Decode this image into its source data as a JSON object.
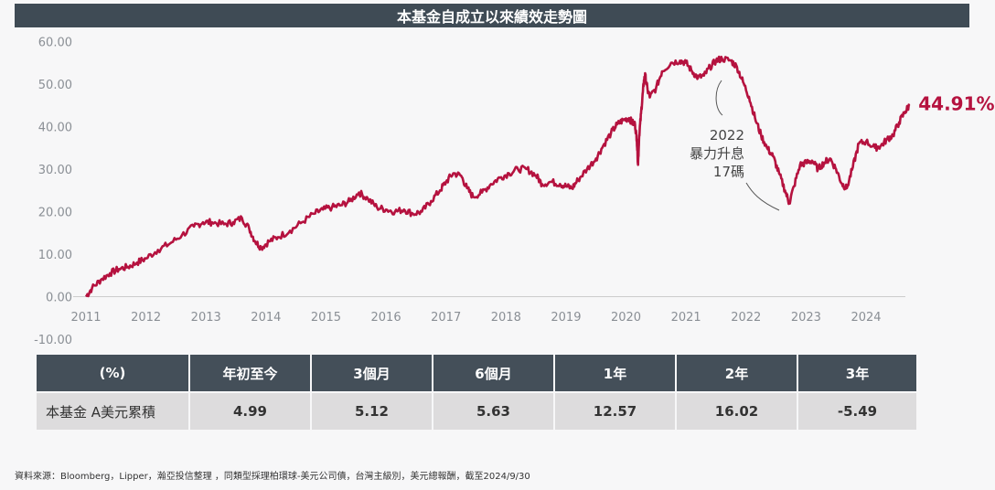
{
  "title": "本基金自成立以來績效走勢圖",
  "chart_data": {
    "type": "line",
    "title": "本基金自成立以來績效走勢圖",
    "xlabel": "",
    "ylabel": "",
    "xlim": [
      2011.0,
      2025.0
    ],
    "ylim": [
      -10,
      60
    ],
    "y_ticks": [
      "60.00",
      "50.00",
      "40.00",
      "30.00",
      "20.00",
      "10.00",
      "0.00",
      "-10.00"
    ],
    "x_ticks": [
      "2011",
      "2012",
      "2013",
      "2014",
      "2015",
      "2016",
      "2017",
      "2018",
      "2019",
      "2020",
      "2021",
      "2022",
      "2023",
      "2024"
    ],
    "grid": false,
    "series": [
      {
        "color": "#b5123f",
        "points": [
          [
            2011.0,
            0.0
          ],
          [
            2011.1,
            2.0
          ],
          [
            2011.25,
            4.0
          ],
          [
            2011.4,
            5.5
          ],
          [
            2011.55,
            6.5
          ],
          [
            2011.7,
            7.0
          ],
          [
            2011.85,
            8.0
          ],
          [
            2012.0,
            9.0
          ],
          [
            2012.2,
            11.0
          ],
          [
            2012.4,
            12.5
          ],
          [
            2012.6,
            14.5
          ],
          [
            2012.8,
            16.5
          ],
          [
            2012.95,
            17.5
          ],
          [
            2013.1,
            17.5
          ],
          [
            2013.3,
            17.0
          ],
          [
            2013.45,
            17.5
          ],
          [
            2013.6,
            18.5
          ],
          [
            2013.72,
            16.0
          ],
          [
            2013.82,
            13.0
          ],
          [
            2013.92,
            11.5
          ],
          [
            2014.05,
            13.0
          ],
          [
            2014.2,
            14.0
          ],
          [
            2014.4,
            15.5
          ],
          [
            2014.6,
            17.5
          ],
          [
            2014.8,
            19.5
          ],
          [
            2014.95,
            20.5
          ],
          [
            2015.1,
            21.0
          ],
          [
            2015.25,
            21.5
          ],
          [
            2015.4,
            22.5
          ],
          [
            2015.55,
            24.5
          ],
          [
            2015.7,
            23.0
          ],
          [
            2015.85,
            21.0
          ],
          [
            2016.0,
            20.5
          ],
          [
            2016.15,
            20.0
          ],
          [
            2016.3,
            20.5
          ],
          [
            2016.45,
            19.5
          ],
          [
            2016.6,
            20.0
          ],
          [
            2016.75,
            22.5
          ],
          [
            2016.9,
            25.0
          ],
          [
            2017.0,
            27.0
          ],
          [
            2017.12,
            29.0
          ],
          [
            2017.25,
            28.5
          ],
          [
            2017.35,
            25.5
          ],
          [
            2017.45,
            23.5
          ],
          [
            2017.6,
            24.5
          ],
          [
            2017.75,
            26.5
          ],
          [
            2017.9,
            28.0
          ],
          [
            2018.05,
            29.0
          ],
          [
            2018.2,
            30.0
          ],
          [
            2018.35,
            30.0
          ],
          [
            2018.5,
            28.5
          ],
          [
            2018.6,
            26.5
          ],
          [
            2018.75,
            27.0
          ],
          [
            2018.9,
            26.5
          ],
          [
            2019.0,
            26.0
          ],
          [
            2019.1,
            25.5
          ],
          [
            2019.2,
            27.5
          ],
          [
            2019.35,
            30.0
          ],
          [
            2019.5,
            32.5
          ],
          [
            2019.62,
            35.5
          ],
          [
            2019.75,
            38.5
          ],
          [
            2019.85,
            40.5
          ],
          [
            2019.95,
            41.5
          ],
          [
            2020.05,
            42.0
          ],
          [
            2020.1,
            41.0
          ],
          [
            2020.15,
            40.5
          ],
          [
            2020.18,
            37.0
          ],
          [
            2020.2,
            31.0
          ],
          [
            2020.22,
            38.0
          ],
          [
            2020.25,
            43.0
          ],
          [
            2020.28,
            48.0
          ],
          [
            2020.3,
            51.0
          ],
          [
            2020.32,
            52.0
          ],
          [
            2020.36,
            48.5
          ],
          [
            2020.4,
            47.0
          ],
          [
            2020.5,
            49.0
          ],
          [
            2020.6,
            53.0
          ],
          [
            2020.75,
            55.0
          ],
          [
            2020.9,
            55.5
          ],
          [
            2021.0,
            55.0
          ],
          [
            2021.1,
            53.0
          ],
          [
            2021.2,
            51.5
          ],
          [
            2021.3,
            52.0
          ],
          [
            2021.4,
            54.0
          ],
          [
            2021.5,
            55.5
          ],
          [
            2021.6,
            56.0
          ],
          [
            2021.75,
            55.5
          ],
          [
            2021.85,
            54.0
          ],
          [
            2021.95,
            50.5
          ],
          [
            2022.05,
            47.0
          ],
          [
            2022.15,
            42.0
          ],
          [
            2022.25,
            38.0
          ],
          [
            2022.35,
            35.0
          ],
          [
            2022.45,
            33.0
          ],
          [
            2022.55,
            29.0
          ],
          [
            2022.65,
            25.0
          ],
          [
            2022.72,
            22.0
          ],
          [
            2022.8,
            26.0
          ],
          [
            2022.9,
            31.0
          ],
          [
            2023.0,
            31.5
          ],
          [
            2023.1,
            32.0
          ],
          [
            2023.2,
            30.0
          ],
          [
            2023.3,
            31.5
          ],
          [
            2023.4,
            32.5
          ],
          [
            2023.5,
            30.0
          ],
          [
            2023.6,
            26.5
          ],
          [
            2023.68,
            25.5
          ],
          [
            2023.78,
            30.5
          ],
          [
            2023.88,
            36.0
          ],
          [
            2024.0,
            36.5
          ],
          [
            2024.15,
            35.0
          ],
          [
            2024.25,
            35.5
          ],
          [
            2024.35,
            37.0
          ],
          [
            2024.45,
            38.0
          ],
          [
            2024.55,
            41.0
          ],
          [
            2024.65,
            43.5
          ],
          [
            2024.72,
            44.91
          ]
        ]
      }
    ],
    "end_label": "44.91%",
    "annotation": [
      "2022",
      "暴力升息",
      "17碼"
    ]
  },
  "table": {
    "headers": [
      "(%)",
      "年初至今",
      "3個月",
      "6個月",
      "1年",
      "2年",
      "3年"
    ],
    "row_label": "本基金 A美元累積",
    "values": [
      "4.99",
      "5.12",
      "5.63",
      "12.57",
      "16.02",
      "-5.49"
    ]
  },
  "source": "資料來源：Bloomberg，Lipper，瀚亞投信整理 ，同類型採理柏環球-美元公司債，台灣主級別，美元總報酬，截至2024/9/30"
}
